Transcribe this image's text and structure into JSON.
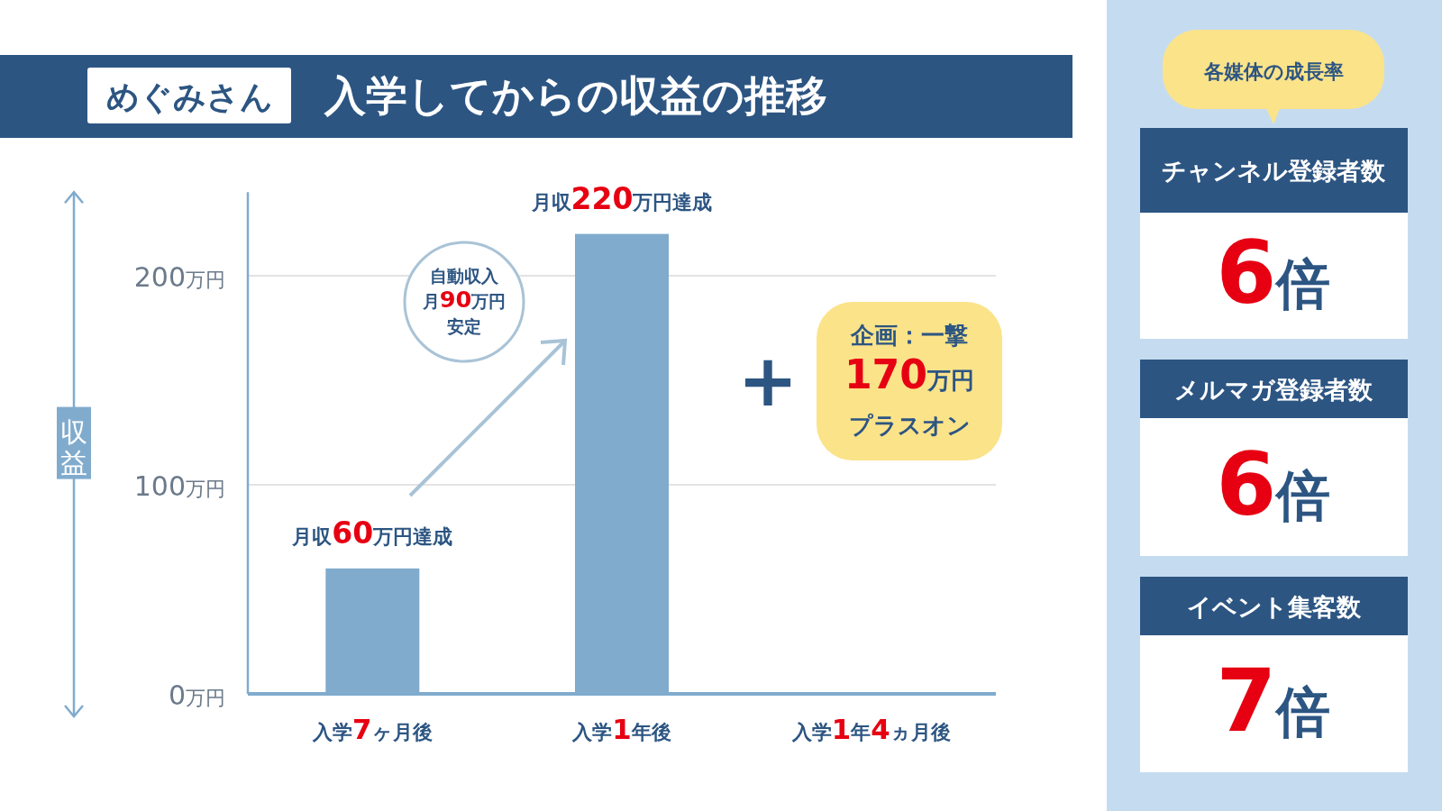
{
  "chart_data": [
    {
      "type": "bar",
      "title": "めぐみさん",
      "subtitle": "入学してからの収益の推移",
      "ylabel": "収益",
      "categories": [
        "入学7ヶ月後",
        "入学1年後",
        "入学1年4ヵ月後"
      ],
      "values": [
        60,
        220,
        null
      ],
      "color": "#80abcd",
      "ylim": [
        0,
        240
      ],
      "yticks": [
        {
          "value": 0,
          "label": "0万円"
        },
        {
          "value": 100,
          "label": "100万円"
        },
        {
          "value": 200,
          "label": "200万円"
        }
      ],
      "grid": "y",
      "annotations": [
        {
          "text": "月収60万円達成",
          "x": "入学7ヶ月後",
          "y": 60
        },
        {
          "text": "月収220万円達成",
          "x": "入学1年後",
          "y": 220
        },
        "自動収入",
        "月90万円",
        "安定",
        "+",
        "企画：一撃",
        "170万円",
        "プラスオン"
      ]
    },
    {
      "type": "other",
      "title": "各媒体の成長率",
      "annotations": [
        "チャンネル登録者数",
        "6倍",
        "メルマガ登録者数",
        "6倍",
        "イベント集客数",
        "7倍"
      ]
    }
  ]
}
